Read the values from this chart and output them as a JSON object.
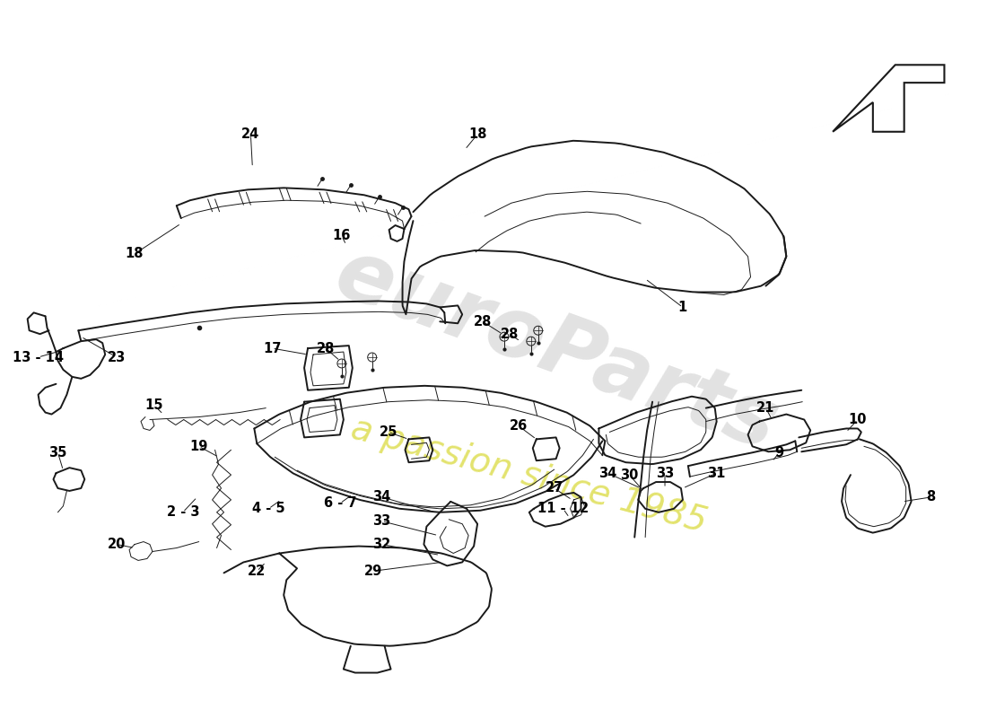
{
  "background_color": "#ffffff",
  "line_color": "#1a1a1a",
  "label_color": "#000000",
  "watermark_color1": "#c0c0c0",
  "watermark_color2": "#d4d420",
  "lw_main": 1.4,
  "lw_thin": 0.7,
  "label_fontsize": 10.5
}
